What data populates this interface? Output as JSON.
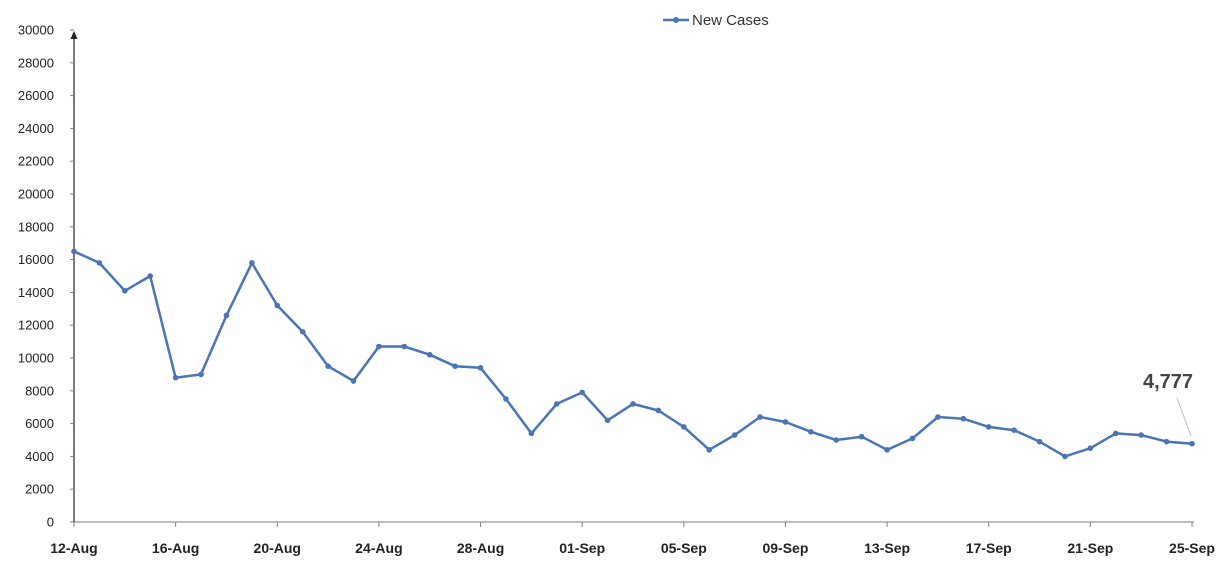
{
  "chart_data": {
    "type": "line",
    "legend": {
      "label": "New Cases",
      "position": "top"
    },
    "series": [
      {
        "name": "New Cases",
        "color": "#4a74b4",
        "x": [
          "12-Aug",
          "13-Aug",
          "14-Aug",
          "15-Aug",
          "16-Aug",
          "17-Aug",
          "18-Aug",
          "19-Aug",
          "20-Aug",
          "21-Aug",
          "22-Aug",
          "23-Aug",
          "24-Aug",
          "25-Aug",
          "26-Aug",
          "27-Aug",
          "28-Aug",
          "29-Aug",
          "30-Aug",
          "31-Aug",
          "01-Sep",
          "02-Sep",
          "03-Sep",
          "04-Sep",
          "05-Sep",
          "06-Sep",
          "07-Sep",
          "08-Sep",
          "09-Sep",
          "10-Sep",
          "11-Sep",
          "12-Sep",
          "13-Sep",
          "14-Sep",
          "15-Sep",
          "16-Sep",
          "17-Sep",
          "18-Sep",
          "19-Sep",
          "20-Sep",
          "21-Sep",
          "22-Sep",
          "23-Sep",
          "24-Sep",
          "25-Sep"
        ],
        "values": [
          16500,
          15800,
          14100,
          15000,
          8800,
          9000,
          12600,
          15800,
          13200,
          11600,
          9500,
          8600,
          10700,
          10700,
          10200,
          9500,
          9400,
          7500,
          5400,
          7200,
          7900,
          6200,
          7200,
          6800,
          5800,
          4400,
          5300,
          6400,
          6100,
          5500,
          5000,
          5200,
          4400,
          5100,
          6400,
          6300,
          5800,
          5600,
          4900,
          4000,
          4500,
          5400,
          5300,
          4900,
          4777
        ]
      }
    ],
    "x_tick_labels": [
      "12-Aug",
      "16-Aug",
      "20-Aug",
      "24-Aug",
      "28-Aug",
      "01-Sep",
      "05-Sep",
      "09-Sep",
      "13-Sep",
      "17-Sep",
      "21-Sep",
      "25-Sep"
    ],
    "y_tick_labels": [
      "0",
      "2000",
      "4000",
      "6000",
      "8000",
      "10000",
      "12000",
      "14000",
      "16000",
      "18000",
      "20000",
      "22000",
      "24000",
      "26000",
      "28000",
      "30000"
    ],
    "ylim": [
      0,
      30000
    ],
    "annotations": [
      {
        "text": "4,777",
        "x": "25-Sep",
        "y": 4777
      }
    ],
    "title": "",
    "xlabel": "",
    "ylabel": "",
    "grid": false
  }
}
